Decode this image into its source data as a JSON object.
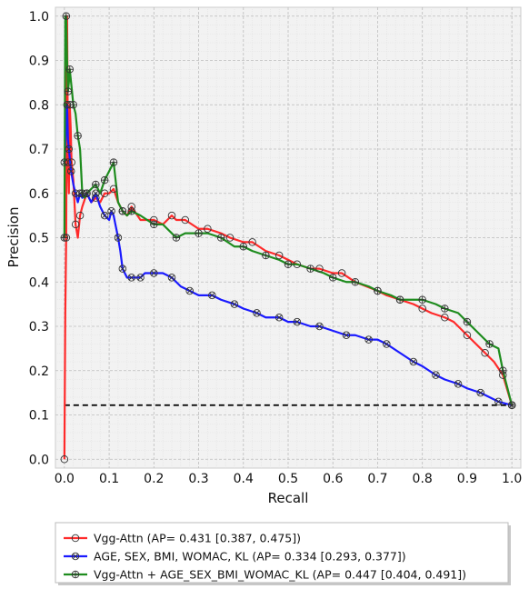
{
  "chart_data": {
    "type": "line",
    "title": "",
    "xlabel": "Recall",
    "ylabel": "Precision",
    "xlim": [
      -0.02,
      1.02
    ],
    "ylim": [
      -0.02,
      1.02
    ],
    "xticks": [
      "0.0",
      "0.1",
      "0.2",
      "0.3",
      "0.4",
      "0.5",
      "0.6",
      "0.7",
      "0.8",
      "0.9",
      "1.0"
    ],
    "yticks": [
      "0.0",
      "0.1",
      "0.2",
      "0.3",
      "0.4",
      "0.5",
      "0.6",
      "0.7",
      "0.8",
      "0.9",
      "1.0"
    ],
    "grid": true,
    "legend_position": "below",
    "baseline": 0.122,
    "series": [
      {
        "name": "Vgg-Attn (AP= 0.431 [0.387, 0.475])",
        "color": "#ff2a2a",
        "marker": "circle",
        "x": [
          0.0,
          0.002,
          0.004,
          0.006,
          0.008,
          0.01,
          0.012,
          0.014,
          0.016,
          0.02,
          0.025,
          0.03,
          0.035,
          0.04,
          0.05,
          0.06,
          0.07,
          0.08,
          0.09,
          0.1,
          0.11,
          0.12,
          0.13,
          0.14,
          0.15,
          0.17,
          0.2,
          0.22,
          0.24,
          0.25,
          0.27,
          0.3,
          0.32,
          0.35,
          0.37,
          0.4,
          0.42,
          0.45,
          0.48,
          0.5,
          0.52,
          0.55,
          0.57,
          0.6,
          0.62,
          0.65,
          0.7,
          0.72,
          0.75,
          0.78,
          0.8,
          0.82,
          0.85,
          0.87,
          0.9,
          0.92,
          0.94,
          0.96,
          0.98,
          1.0
        ],
        "y": [
          0.0,
          0.33,
          0.5,
          1.0,
          0.67,
          0.6,
          0.8,
          0.75,
          0.67,
          0.63,
          0.53,
          0.5,
          0.55,
          0.57,
          0.6,
          0.58,
          0.59,
          0.58,
          0.6,
          0.6,
          0.61,
          0.58,
          0.56,
          0.55,
          0.57,
          0.54,
          0.54,
          0.53,
          0.55,
          0.54,
          0.54,
          0.52,
          0.52,
          0.51,
          0.5,
          0.49,
          0.49,
          0.47,
          0.46,
          0.45,
          0.44,
          0.43,
          0.43,
          0.42,
          0.42,
          0.4,
          0.38,
          0.37,
          0.36,
          0.35,
          0.34,
          0.33,
          0.32,
          0.31,
          0.28,
          0.26,
          0.24,
          0.22,
          0.19,
          0.122
        ]
      },
      {
        "name": "AGE, SEX, BMI, WOMAC, KL (AP= 0.334 [0.293, 0.377])",
        "color": "#1a1aff",
        "marker": "x-circle",
        "x": [
          0.0,
          0.004,
          0.006,
          0.008,
          0.01,
          0.012,
          0.015,
          0.02,
          0.025,
          0.03,
          0.035,
          0.04,
          0.05,
          0.06,
          0.07,
          0.08,
          0.09,
          0.1,
          0.105,
          0.11,
          0.12,
          0.125,
          0.13,
          0.14,
          0.15,
          0.16,
          0.17,
          0.18,
          0.2,
          0.22,
          0.24,
          0.26,
          0.28,
          0.3,
          0.33,
          0.35,
          0.38,
          0.4,
          0.43,
          0.45,
          0.48,
          0.5,
          0.52,
          0.55,
          0.57,
          0.6,
          0.63,
          0.65,
          0.68,
          0.7,
          0.72,
          0.75,
          0.78,
          0.8,
          0.83,
          0.85,
          0.88,
          0.9,
          0.93,
          0.95,
          0.97,
          1.0
        ],
        "y": [
          0.67,
          0.75,
          0.8,
          0.72,
          0.7,
          0.68,
          0.65,
          0.62,
          0.6,
          0.58,
          0.6,
          0.59,
          0.6,
          0.58,
          0.6,
          0.57,
          0.55,
          0.54,
          0.56,
          0.55,
          0.5,
          0.47,
          0.43,
          0.41,
          0.41,
          0.41,
          0.41,
          0.42,
          0.42,
          0.42,
          0.41,
          0.39,
          0.38,
          0.37,
          0.37,
          0.36,
          0.35,
          0.34,
          0.33,
          0.32,
          0.32,
          0.31,
          0.31,
          0.3,
          0.3,
          0.29,
          0.28,
          0.28,
          0.27,
          0.27,
          0.26,
          0.24,
          0.22,
          0.21,
          0.19,
          0.18,
          0.17,
          0.16,
          0.15,
          0.14,
          0.13,
          0.122
        ]
      },
      {
        "name": "Vgg-Attn + AGE_SEX_BMI_WOMAC_KL (AP= 0.447 [0.404, 0.491])",
        "color": "#1e8c1e",
        "marker": "plus-circle",
        "x": [
          0.0,
          0.002,
          0.004,
          0.006,
          0.008,
          0.01,
          0.012,
          0.015,
          0.02,
          0.025,
          0.03,
          0.035,
          0.04,
          0.045,
          0.05,
          0.06,
          0.07,
          0.08,
          0.09,
          0.1,
          0.11,
          0.12,
          0.13,
          0.14,
          0.15,
          0.17,
          0.2,
          0.22,
          0.25,
          0.27,
          0.3,
          0.32,
          0.35,
          0.38,
          0.4,
          0.42,
          0.45,
          0.48,
          0.5,
          0.52,
          0.55,
          0.58,
          0.6,
          0.63,
          0.65,
          0.68,
          0.7,
          0.73,
          0.75,
          0.78,
          0.8,
          0.83,
          0.85,
          0.88,
          0.9,
          0.93,
          0.95,
          0.97,
          0.98,
          1.0
        ],
        "y": [
          0.5,
          1.0,
          1.0,
          0.9,
          0.83,
          0.85,
          0.88,
          0.85,
          0.8,
          0.78,
          0.73,
          0.7,
          0.6,
          0.59,
          0.6,
          0.61,
          0.62,
          0.6,
          0.63,
          0.65,
          0.67,
          0.58,
          0.56,
          0.55,
          0.56,
          0.55,
          0.53,
          0.53,
          0.5,
          0.51,
          0.51,
          0.51,
          0.5,
          0.48,
          0.48,
          0.47,
          0.46,
          0.45,
          0.44,
          0.44,
          0.43,
          0.42,
          0.41,
          0.4,
          0.4,
          0.39,
          0.38,
          0.37,
          0.36,
          0.36,
          0.36,
          0.35,
          0.34,
          0.33,
          0.31,
          0.28,
          0.26,
          0.25,
          0.2,
          0.122
        ]
      }
    ]
  }
}
